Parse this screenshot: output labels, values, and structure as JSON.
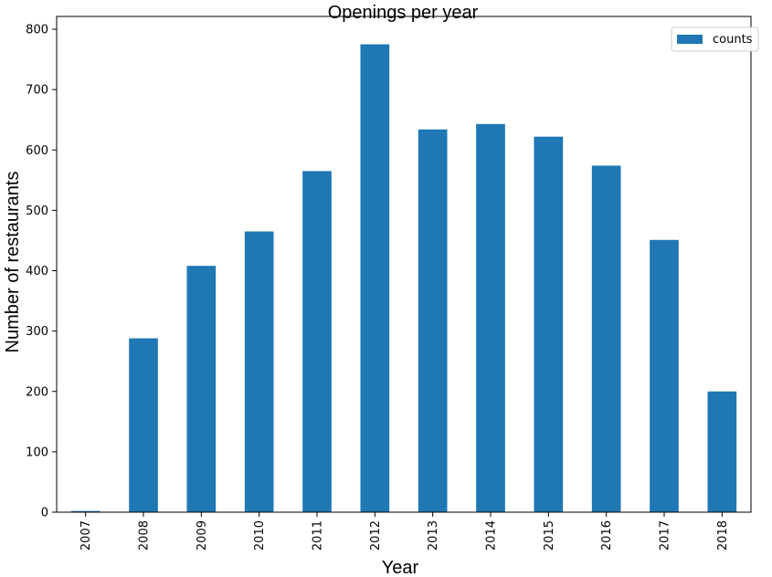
{
  "chart_data": {
    "type": "bar",
    "title": "Openings per year",
    "xlabel": "Year",
    "ylabel": "Number of restaurants",
    "categories": [
      "2007",
      "2008",
      "2009",
      "2010",
      "2011",
      "2012",
      "2013",
      "2014",
      "2015",
      "2016",
      "2017",
      "2018"
    ],
    "series": [
      {
        "name": "counts",
        "values": [
          2,
          288,
          408,
          465,
          565,
          775,
          634,
          643,
          622,
          574,
          451,
          200
        ],
        "color": "#1f77b4"
      }
    ],
    "ylim": [
      0,
      800
    ],
    "yticks": [
      0,
      100,
      200,
      300,
      400,
      500,
      600,
      700,
      800
    ],
    "grid": false,
    "legend": {
      "position": "top-right"
    }
  }
}
